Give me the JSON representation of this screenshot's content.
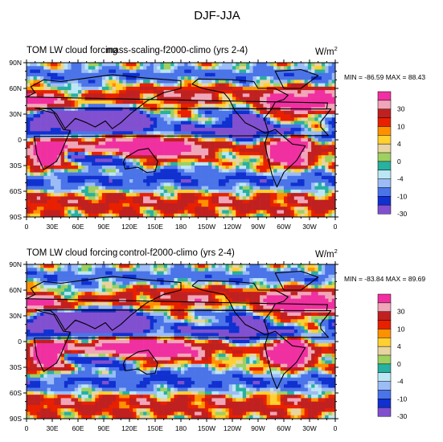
{
  "figure": {
    "title": "DJF-JJA"
  },
  "palette": {
    "colors": [
      "#8050d0",
      "#1030d0",
      "#4a74e8",
      "#9cbcf6",
      "#bce6f4",
      "#28b0a0",
      "#9ed060",
      "#e8d4a0",
      "#ffd030",
      "#ff9000",
      "#e82000",
      "#c02020",
      "#f0a6b8",
      "#f030a0"
    ],
    "labels": [
      "-30",
      "-10",
      "-4",
      "0",
      "4",
      "10",
      "30"
    ]
  },
  "chart_data": [
    {
      "type": "heatmap",
      "title_left": "TOM LW cloud forcing",
      "title_center": "mass-scaling-f2000-climo (yrs 2-4)",
      "units": "W/m",
      "units_sup": "2",
      "stats": "MIN = -86.59 MAX =  88.43",
      "min": -86.59,
      "max": 88.43,
      "x_ticks": [
        "0",
        "30E",
        "60E",
        "90E",
        "120E",
        "150E",
        "180",
        "150W",
        "120W",
        "90W",
        "60W",
        "30W",
        "0"
      ],
      "y_ticks": [
        "90N",
        "60N",
        "30N",
        "0",
        "30S",
        "60S",
        "90S"
      ],
      "xlim": [
        0,
        360
      ],
      "ylim": [
        -90,
        90
      ]
    },
    {
      "type": "heatmap",
      "title_left": "TOM LW cloud forcing",
      "title_center": "control-f2000-climo (yrs 2-4)",
      "units": "W/m",
      "units_sup": "2",
      "stats": "MIN = -83.84 MAX =  89.69",
      "min": -83.84,
      "max": 89.69,
      "x_ticks": [
        "0",
        "30E",
        "60E",
        "90E",
        "120E",
        "150E",
        "180",
        "150W",
        "120W",
        "90W",
        "60W",
        "30W",
        "0"
      ],
      "y_ticks": [
        "90N",
        "60N",
        "30N",
        "0",
        "30S",
        "60S",
        "90S"
      ],
      "xlim": [
        0,
        360
      ],
      "ylim": [
        -90,
        90
      ]
    }
  ]
}
